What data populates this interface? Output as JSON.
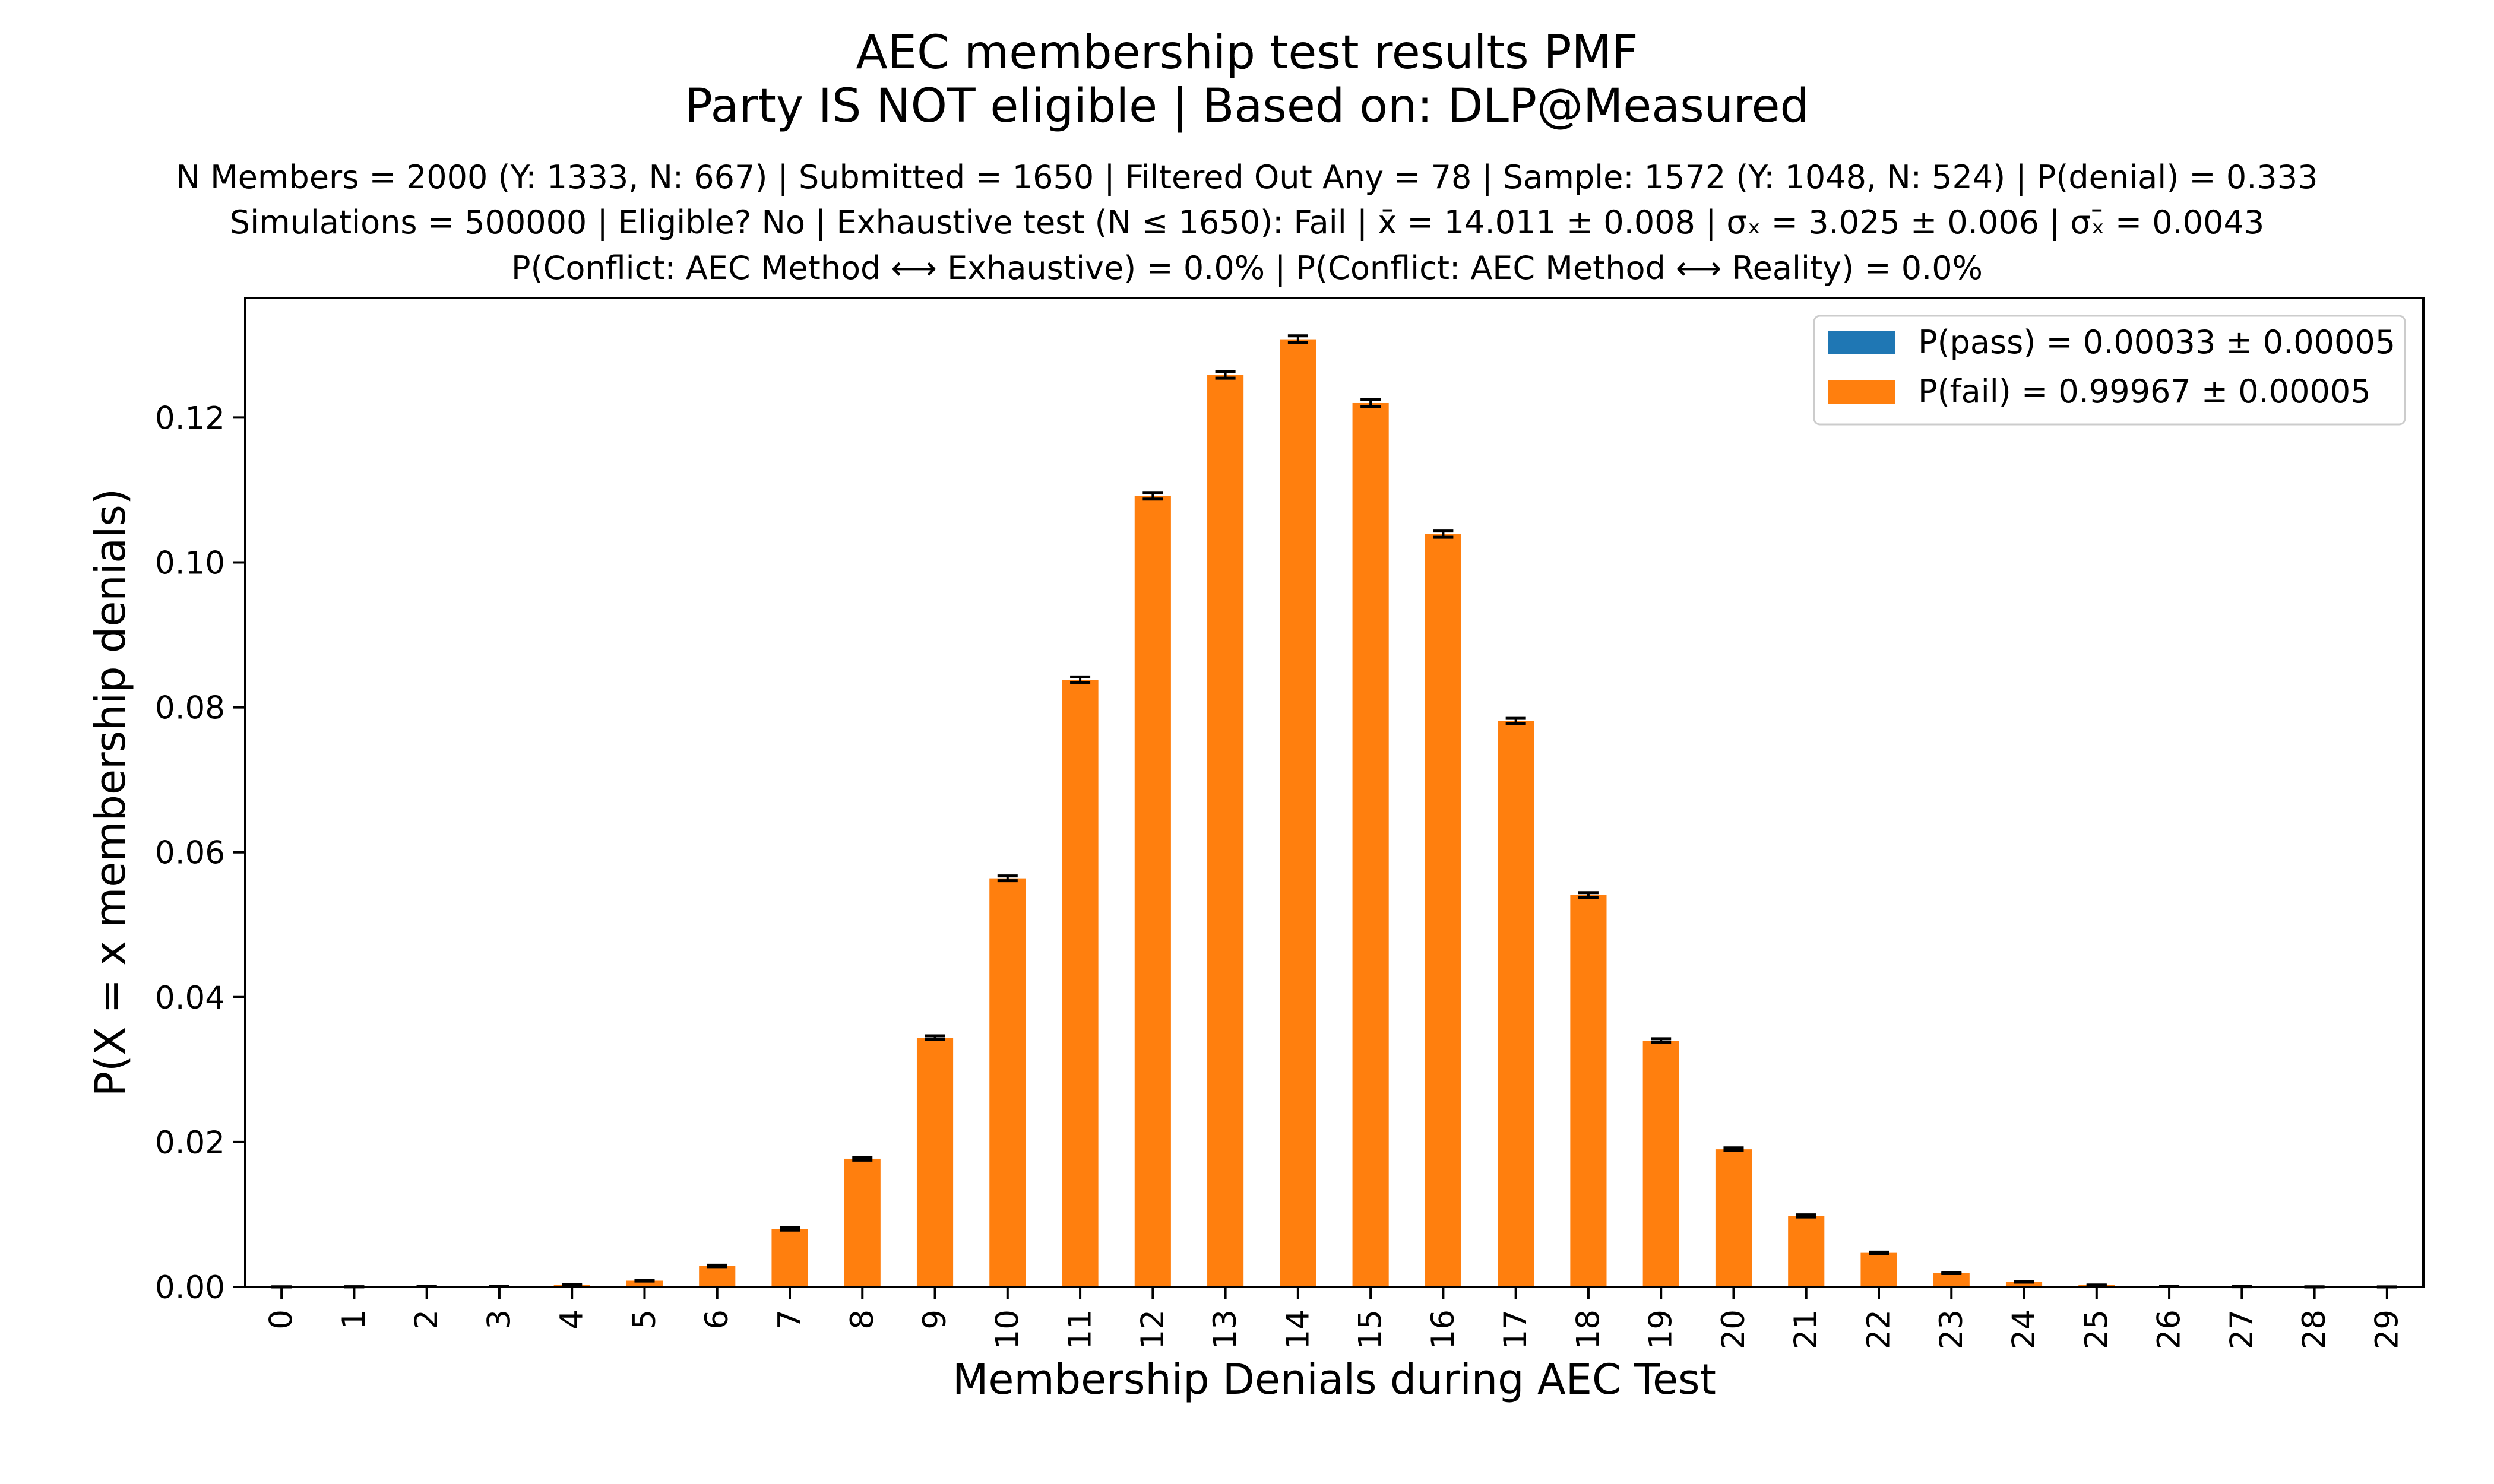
{
  "chart_data": {
    "type": "bar",
    "title": "AEC membership test results PMF",
    "title2": "Party IS NOT eligible | Based on: DLP@Measured",
    "subtitle_lines": [
      "N Members = 2000 (Y: 1333, N: 667) | Submitted = 1650 | Filtered Out Any = 78 | Sample: 1572 (Y: 1048, N: 524) | P(denial) = 0.333",
      "Simulations = 500000 | Eligible? No | Exhaustive test (N ≤ 1650): Fail | x̄ = 14.011 ± 0.008 | σₓ = 3.025 ± 0.006 | σₓ̄ = 0.0043",
      "P(Conflict: AEC Method ⟷ Exhaustive) = 0.0% | P(Conflict: AEC Method ⟷ Reality) = 0.0%"
    ],
    "xlabel": "Membership Denials during AEC Test",
    "ylabel": "P(X = x membership denials)",
    "categories": [
      "0",
      "1",
      "2",
      "3",
      "4",
      "5",
      "6",
      "7",
      "8",
      "9",
      "10",
      "11",
      "12",
      "13",
      "14",
      "15",
      "16",
      "17",
      "18",
      "19",
      "20",
      "21",
      "22",
      "23",
      "24",
      "25",
      "26",
      "27",
      "28",
      "29"
    ],
    "ylim": [
      0,
      0.1365
    ],
    "yticks": [
      "0.00",
      "0.02",
      "0.04",
      "0.06",
      "0.08",
      "0.10",
      "0.12"
    ],
    "ytick_values": [
      0,
      0.02,
      0.04,
      0.06,
      0.08,
      0.1,
      0.12
    ],
    "grid": false,
    "legend_position": "top-right",
    "series": [
      {
        "name": "P(pass) = 0.00033 ± 0.00005",
        "color": "#1f77b4",
        "values": [
          0,
          0,
          0,
          0,
          0,
          0,
          0,
          0,
          0,
          0,
          0,
          0,
          0,
          0,
          0,
          0,
          0,
          0,
          0,
          0,
          0,
          0,
          0,
          0,
          0,
          0,
          0,
          0,
          0,
          0
        ]
      },
      {
        "name": "P(fail) = 0.99967 ± 0.00005",
        "color": "#ff7f0e",
        "values": [
          1e-05,
          2e-05,
          5e-05,
          0.0001,
          0.00028,
          0.00086,
          0.0029,
          0.008,
          0.0177,
          0.0344,
          0.0564,
          0.0838,
          0.1092,
          0.1259,
          0.1308,
          0.122,
          0.1039,
          0.0781,
          0.0541,
          0.034,
          0.019,
          0.0098,
          0.0047,
          0.0019,
          0.0007,
          0.00025,
          0.0001,
          4e-05,
          1e-05,
          3e-06
        ],
        "errors": [
          1e-05,
          1e-05,
          1e-05,
          1e-05,
          3e-05,
          5e-05,
          0.0001,
          0.00015,
          0.0002,
          0.00026,
          0.00033,
          0.0004,
          0.00045,
          0.00047,
          0.00048,
          0.00046,
          0.00043,
          0.00038,
          0.00032,
          0.00026,
          0.00019,
          0.00014,
          0.0001,
          6e-05,
          4e-05,
          2e-05,
          1e-05,
          1e-05,
          1e-05,
          1e-05
        ]
      }
    ],
    "error_bar_color": "#000000"
  }
}
